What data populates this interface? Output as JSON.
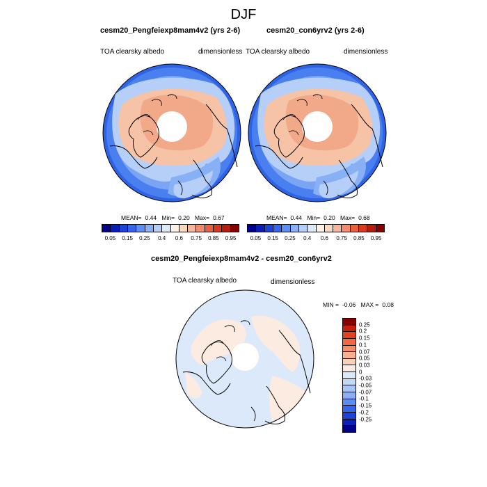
{
  "main_title": "DJF",
  "panel_left": {
    "title": "cesm20_Pengfeiexp8mam4v2 (yrs 2-6)",
    "variable": "TOA clearsky albedo",
    "units": "dimensionless",
    "mean_label": "MEAN=",
    "mean": "0.44",
    "min_label": "Min=",
    "min": "0.20",
    "max_label": "Max=",
    "max": "0.67"
  },
  "panel_right": {
    "title": "cesm20_con6yrv2 (yrs 2-6)",
    "variable": "TOA clearsky albedo",
    "units": "dimensionless",
    "mean_label": "MEAN=",
    "mean": "0.44",
    "min_label": "Min=",
    "min": "0.20",
    "max_label": "Max=",
    "max": "0.68"
  },
  "panel_diff": {
    "title": "cesm20_Pengfeiexp8mam4v2 - cesm20_con6yrv2",
    "variable": "TOA clearsky albedo",
    "units": "dimensionless",
    "min_label": "MIN =",
    "min": "-0.06",
    "max_label": "MAX =",
    "max": "0.08"
  },
  "colorbar_main": {
    "colors": [
      "#00008a",
      "#0a1fb8",
      "#1a44d9",
      "#3366ee",
      "#5b8ef2",
      "#88b0f5",
      "#b5cff8",
      "#dce9fb",
      "#fdf1e8",
      "#fbd8c0",
      "#f7b79a",
      "#f28c6a",
      "#e9603f",
      "#d83a1e",
      "#b51c0c",
      "#860000"
    ],
    "tick_labels": [
      "0.05",
      "0.15",
      "0.25",
      "0.4",
      "0.6",
      "0.75",
      "0.85",
      "0.95"
    ]
  },
  "colorbar_diff": {
    "colors": [
      "#860000",
      "#c4200c",
      "#e2431f",
      "#ef6a44",
      "#f58f67",
      "#f8b08e",
      "#fbd0b7",
      "#fcebe0",
      "#dce9fb",
      "#c2d9f8",
      "#a6c4f4",
      "#8aaff1",
      "#5b8ef2",
      "#3366ee",
      "#1a44d9",
      "#0a1fb8",
      "#00008a"
    ],
    "tick_labels": [
      "0.25",
      "0.2",
      "0.15",
      "0.1",
      "0.07",
      "0.05",
      "0.03",
      "0",
      "-0.03",
      "-0.05",
      "-0.07",
      "-0.1",
      "-0.15",
      "-0.2",
      "-0.25"
    ]
  }
}
